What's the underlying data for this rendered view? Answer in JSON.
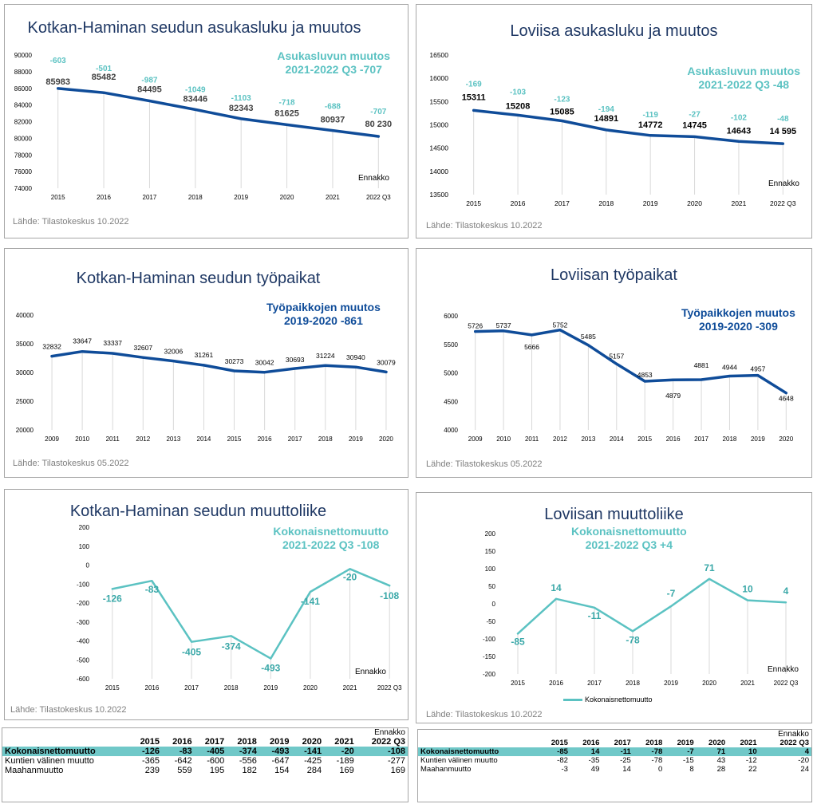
{
  "panels": {
    "pop_kh": {
      "title": "Kotkan-Haminan seudun asukasluku ja muutos",
      "note": [
        "Asukasluvun muutos",
        "2021-2022 Q3    -707"
      ],
      "source": "Lähde: Tilastokeskus 10.2022",
      "ennakko": "Ennakko"
    },
    "pop_lo": {
      "title": "Loviisa asukasluku ja muutos",
      "note": [
        "Asukasluvun muutos",
        "2021-2022 Q3    -48"
      ],
      "source": "Lähde: Tilastokeskus 10.2022",
      "ennakko": "Ennakko"
    },
    "jobs_kh": {
      "title": "Kotkan-Haminan seudun työpaikat",
      "note": [
        "Työpaikkojen muutos",
        "2019-2020   -861"
      ],
      "source": "Lähde: Tilastokeskus 05.2022"
    },
    "jobs_lo": {
      "title": "Loviisan työpaikat",
      "note": [
        "Työpaikkojen muutos",
        "2019-2020   -309"
      ],
      "source": "Lähde: Tilastokeskus 05.2022"
    },
    "mig_kh": {
      "title": "Kotkan-Haminan seudun muuttoliike",
      "note": [
        "Kokonaisnettomuutto",
        "2021-2022 Q3    -108"
      ],
      "source": "Lähde: Tilastokeskus 10.2022",
      "ennakko": "Ennakko"
    },
    "mig_lo": {
      "title": "Loviisan muuttoliike",
      "note": [
        "Kokonaisnettomuutto",
        "2021-2022 Q3    +4"
      ],
      "source": "Lähde: Tilastokeskus 10.2022",
      "ennakko": "Ennakko",
      "legend": "Kokonaisnettomuutto"
    }
  },
  "colors": {
    "navy": "#0f4c99",
    "teal": "#5bc2c2",
    "title": "#1f3864",
    "grid": "#d9d9d9"
  },
  "chart_data": [
    {
      "id": "pop_kh",
      "type": "line",
      "title": "Kotkan-Haminan seudun asukasluku ja muutos",
      "categories": [
        "2015",
        "2016",
        "2017",
        "2018",
        "2019",
        "2020",
        "2021",
        "2022 Q3"
      ],
      "values": [
        85983,
        85482,
        84495,
        83446,
        82343,
        81625,
        80937,
        80230
      ],
      "value_labels": [
        "85983",
        "85482",
        "84495",
        "83446",
        "82343",
        "81625",
        "80937",
        "80 230"
      ],
      "changes": [
        "-603",
        "-501",
        "-987",
        "-1049",
        "-1103",
        "-718",
        "-688",
        "-707"
      ],
      "ylim": [
        74000,
        90000
      ],
      "yticks": [
        74000,
        76000,
        78000,
        80000,
        82000,
        84000,
        86000,
        88000,
        90000
      ]
    },
    {
      "id": "pop_lo",
      "type": "line",
      "title": "Loviisa asukasluku ja muutos",
      "categories": [
        "2015",
        "2016",
        "2017",
        "2018",
        "2019",
        "2020",
        "2021",
        "2022 Q3"
      ],
      "values": [
        15311,
        15208,
        15085,
        14891,
        14772,
        14745,
        14643,
        14595
      ],
      "value_labels": [
        "15311",
        "15208",
        "15085",
        "14891",
        "14772",
        "14745",
        "14643",
        "14 595"
      ],
      "changes": [
        "-169",
        "-103",
        "-123",
        "-194",
        "-119",
        "-27",
        "-102",
        "-48"
      ],
      "ylim": [
        13500,
        16500
      ],
      "yticks": [
        13500,
        14000,
        14500,
        15000,
        15500,
        16000,
        16500
      ]
    },
    {
      "id": "jobs_kh",
      "type": "line",
      "title": "Kotkan-Haminan seudun työpaikat",
      "categories": [
        "2009",
        "2010",
        "2011",
        "2012",
        "2013",
        "2014",
        "2015",
        "2016",
        "2017",
        "2018",
        "2019",
        "2020"
      ],
      "values": [
        32832,
        33647,
        33337,
        32607,
        32006,
        31261,
        30273,
        30042,
        30693,
        31224,
        30940,
        30079
      ],
      "ylim": [
        20000,
        40000
      ],
      "yticks": [
        20000,
        25000,
        30000,
        35000,
        40000
      ]
    },
    {
      "id": "jobs_lo",
      "type": "line",
      "title": "Loviisan työpaikat",
      "categories": [
        "2009",
        "2010",
        "2011",
        "2012",
        "2013",
        "2014",
        "2015",
        "2016",
        "2017",
        "2018",
        "2019",
        "2020"
      ],
      "values": [
        5726,
        5737,
        5666,
        5752,
        5485,
        5157,
        4853,
        4879,
        4881,
        4944,
        4957,
        4648
      ],
      "ylim": [
        4000,
        6000
      ],
      "yticks": [
        4000,
        4500,
        5000,
        5500,
        6000
      ]
    },
    {
      "id": "mig_kh",
      "type": "line",
      "title": "Kotkan-Haminan seudun muuttoliike",
      "categories": [
        "2015",
        "2016",
        "2017",
        "2018",
        "2019",
        "2020",
        "2021",
        "2022 Q3"
      ],
      "values": [
        -126,
        -83,
        -405,
        -374,
        -493,
        -141,
        -20,
        -108
      ],
      "ylim": [
        -600,
        200
      ],
      "yticks": [
        -600,
        -500,
        -400,
        -300,
        -200,
        -100,
        0,
        100,
        200
      ]
    },
    {
      "id": "mig_lo",
      "type": "line",
      "title": "Loviisan muuttoliike",
      "categories": [
        "2015",
        "2016",
        "2017",
        "2018",
        "2019",
        "2020",
        "2021",
        "2022 Q3"
      ],
      "series": [
        {
          "name": "Kokonaisnettomuutto",
          "values": [
            -85,
            14,
            -11,
            -78,
            -7,
            71,
            10,
            4
          ]
        }
      ],
      "values": [
        -85,
        14,
        -11,
        -78,
        -7,
        71,
        10,
        4
      ],
      "ylim": [
        -200,
        200
      ],
      "yticks": [
        -200,
        -150,
        -100,
        -50,
        0,
        50,
        100,
        150,
        200
      ]
    },
    {
      "id": "tbl_kh",
      "type": "table",
      "note": "Ennakko",
      "columns": [
        "",
        "2015",
        "2016",
        "2017",
        "2018",
        "2019",
        "2020",
        "2021",
        "2022 Q3"
      ],
      "rows": [
        [
          "Kokonaisnettomuutto",
          "-126",
          "-83",
          "-405",
          "-374",
          "-493",
          "-141",
          "-20",
          "-108"
        ],
        [
          "Kuntien välinen muutto",
          "-365",
          "-642",
          "-600",
          "-556",
          "-647",
          "-425",
          "-189",
          "-277"
        ],
        [
          "Maahanmuutto",
          "239",
          "559",
          "195",
          "182",
          "154",
          "284",
          "169",
          "169"
        ]
      ]
    },
    {
      "id": "tbl_lo",
      "type": "table",
      "note": "Ennakko",
      "columns": [
        "",
        "2015",
        "2016",
        "2017",
        "2018",
        "2019",
        "2020",
        "2021",
        "2022 Q3"
      ],
      "rows": [
        [
          "Kokonaisnettomuutto",
          "-85",
          "14",
          "-11",
          "-78",
          "-7",
          "71",
          "10",
          "4"
        ],
        [
          "Kuntien välinen muutto",
          "-82",
          "-35",
          "-25",
          "-78",
          "-15",
          "43",
          "-12",
          "-20"
        ],
        [
          "Maahanmuutto",
          "-3",
          "49",
          "14",
          "0",
          "8",
          "28",
          "22",
          "24"
        ]
      ]
    }
  ]
}
